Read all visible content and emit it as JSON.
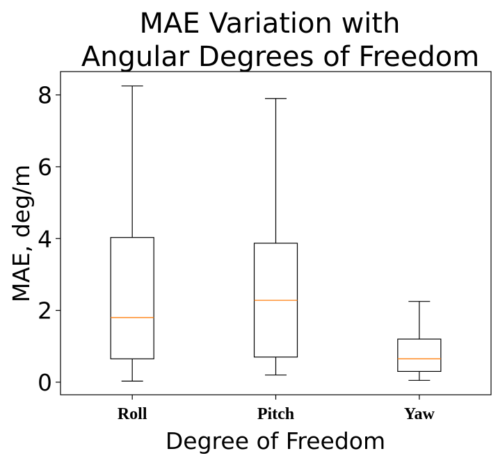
{
  "chart_data": {
    "type": "boxplot",
    "title_lines": [
      "MAE Variation with",
      "Angular Degrees of Freedom"
    ],
    "xlabel": "Degree of Freedom",
    "ylabel": "MAE, deg/m",
    "categories": [
      "Roll",
      "Pitch",
      "Yaw"
    ],
    "boxes": [
      {
        "category": "Roll",
        "whisker_low": 0.03,
        "q1": 0.65,
        "median": 1.8,
        "q3": 4.03,
        "whisker_high": 8.25
      },
      {
        "category": "Pitch",
        "whisker_low": 0.2,
        "q1": 0.7,
        "median": 2.28,
        "q3": 3.87,
        "whisker_high": 7.9
      },
      {
        "category": "Yaw",
        "whisker_low": 0.05,
        "q1": 0.3,
        "median": 0.65,
        "q3": 1.2,
        "whisker_high": 2.25
      }
    ],
    "ylim": [
      -0.35,
      8.65
    ],
    "yticks": [
      0,
      2,
      4,
      6,
      8
    ],
    "grid": false,
    "colors": {
      "box": "#000000",
      "median": "#ff7f0e"
    }
  }
}
